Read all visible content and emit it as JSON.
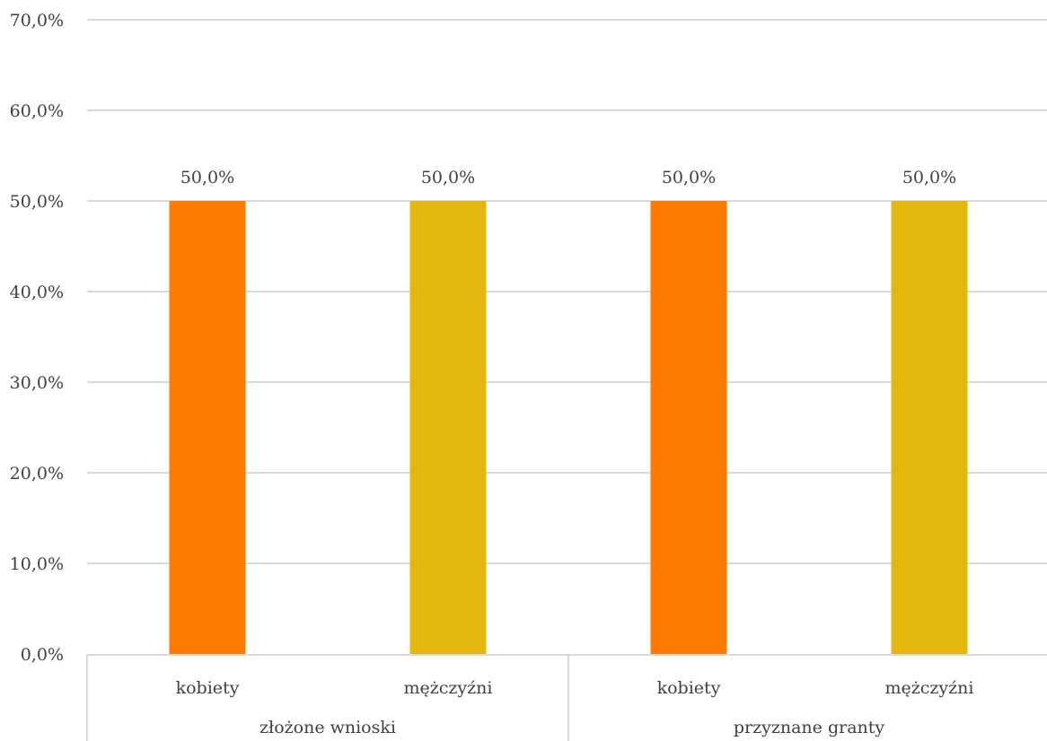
{
  "chart_data": {
    "type": "bar",
    "groups": [
      {
        "label": "złożone wnioski",
        "bars": [
          {
            "label": "kobiety",
            "value": 50.0,
            "data_label": "50,0%"
          },
          {
            "label": "mężczyźni",
            "value": 50.0,
            "data_label": "50,0%"
          }
        ]
      },
      {
        "label": "przyznane granty",
        "bars": [
          {
            "label": "kobiety",
            "value": 50.0,
            "data_label": "50,0%"
          },
          {
            "label": "mężczyźni",
            "value": 50.0,
            "data_label": "50,0%"
          }
        ]
      }
    ],
    "bar_colors": {
      "kobiety": "#FF7B00",
      "mężczyźni": "#E2B80F"
    },
    "ylim": [
      0,
      70
    ],
    "yticks": [
      0,
      10,
      20,
      30,
      40,
      50,
      60,
      70
    ],
    "ytick_labels": [
      "0,0%",
      "10,0%",
      "20,0%",
      "30,0%",
      "40,0%",
      "50,0%",
      "60,0%",
      "70,0%"
    ],
    "grid": true,
    "legend": "none",
    "title": "",
    "xlabel": "",
    "ylabel": ""
  }
}
